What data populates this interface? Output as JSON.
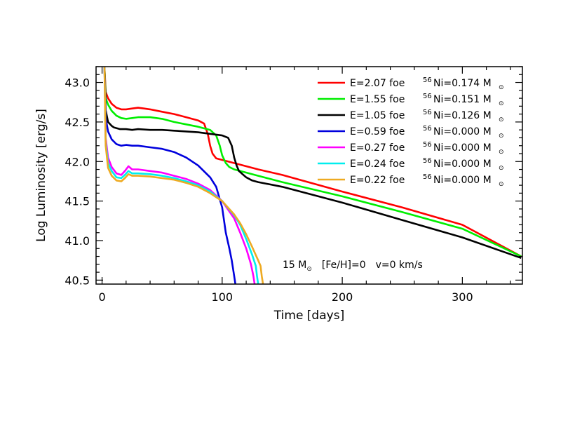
{
  "chart_data": {
    "type": "line",
    "xlabel": "Time [days]",
    "ylabel": "Log Luminosity [erg/s]",
    "xlim": [
      -5,
      350
    ],
    "ylim": [
      40.45,
      43.2
    ],
    "x_ticks": [
      0,
      100,
      200,
      300
    ],
    "y_ticks": [
      40.5,
      41.0,
      41.5,
      42.0,
      42.5,
      43.0
    ],
    "x_tick_labels": [
      "0",
      "100",
      "200",
      "300"
    ],
    "y_tick_labels": [
      "40.5",
      "41.0",
      "41.5",
      "42.0",
      "42.5",
      "43.0"
    ],
    "grid": false,
    "legend_position": "top-right",
    "annotation": {
      "mass": "15 M",
      "sun_symbol": "⊙",
      "metallicity": "[Fe/H]=0",
      "velocity": "v=0 km/s"
    },
    "series": [
      {
        "name": "E=2.07 foe",
        "ni_label": "Ni=0.174 M",
        "ni_sup": "56",
        "sun_symbol": "⊙",
        "color": "#ff0000",
        "x": [
          2,
          3,
          5,
          8,
          12,
          16,
          20,
          25,
          30,
          35,
          40,
          50,
          60,
          70,
          80,
          85,
          88,
          90,
          92,
          95,
          100,
          110,
          130,
          150,
          200,
          250,
          300,
          349
        ],
        "y": [
          43.2,
          42.88,
          42.8,
          42.73,
          42.68,
          42.66,
          42.66,
          42.67,
          42.68,
          42.67,
          42.66,
          42.63,
          42.6,
          42.56,
          42.52,
          42.48,
          42.35,
          42.2,
          42.1,
          42.04,
          42.02,
          41.98,
          41.9,
          41.83,
          41.62,
          41.42,
          41.2,
          40.8
        ]
      },
      {
        "name": "E=1.55 foe",
        "ni_label": "Ni=0.151 M",
        "ni_sup": "56",
        "sun_symbol": "⊙",
        "color": "#00ee00",
        "x": [
          2,
          3,
          5,
          8,
          12,
          16,
          20,
          25,
          30,
          40,
          50,
          60,
          70,
          80,
          90,
          95,
          98,
          100,
          103,
          106,
          110,
          130,
          150,
          200,
          250,
          300,
          349
        ],
        "y": [
          43.2,
          42.8,
          42.72,
          42.64,
          42.58,
          42.55,
          42.54,
          42.55,
          42.56,
          42.56,
          42.54,
          42.5,
          42.47,
          42.44,
          42.4,
          42.33,
          42.2,
          42.08,
          41.98,
          41.93,
          41.9,
          41.82,
          41.74,
          41.56,
          41.36,
          41.15,
          40.8
        ]
      },
      {
        "name": "E=1.05 foe",
        "ni_label": "Ni=0.126 M",
        "ni_sup": "56",
        "sun_symbol": "⊙",
        "color": "#000000",
        "x": [
          2,
          3,
          5,
          8,
          10,
          15,
          20,
          25,
          30,
          40,
          50,
          60,
          70,
          80,
          90,
          100,
          105,
          108,
          110,
          112,
          114,
          117,
          120,
          125,
          130,
          150,
          200,
          250,
          300,
          349
        ],
        "y": [
          43.2,
          42.65,
          42.5,
          42.45,
          42.43,
          42.41,
          42.41,
          42.4,
          42.41,
          42.4,
          42.4,
          42.39,
          42.38,
          42.37,
          42.35,
          42.33,
          42.3,
          42.2,
          42.05,
          41.95,
          41.88,
          41.84,
          41.8,
          41.76,
          41.74,
          41.68,
          41.48,
          41.26,
          41.04,
          40.78
        ]
      },
      {
        "name": "E=0.59 foe",
        "ni_label": "Ni=0.000 M",
        "ni_sup": "56",
        "sun_symbol": "⊙",
        "color": "#0000dd",
        "x": [
          2,
          3,
          5,
          8,
          12,
          16,
          20,
          25,
          30,
          40,
          50,
          60,
          70,
          80,
          90,
          95,
          100,
          103,
          106,
          108,
          110,
          111
        ],
        "y": [
          43.2,
          42.55,
          42.38,
          42.28,
          42.22,
          42.2,
          42.21,
          42.2,
          42.2,
          42.18,
          42.16,
          42.12,
          42.05,
          41.95,
          41.8,
          41.68,
          41.42,
          41.1,
          40.9,
          40.75,
          40.55,
          40.45
        ]
      },
      {
        "name": "E=0.27 foe",
        "ni_label": "Ni=0.000 M",
        "ni_sup": "56",
        "sun_symbol": "⊙",
        "color": "#ff00ff",
        "x": [
          2,
          3,
          5,
          8,
          12,
          16,
          19,
          22,
          25,
          30,
          40,
          50,
          60,
          70,
          80,
          90,
          100,
          110,
          115,
          120,
          124,
          126,
          127
        ],
        "y": [
          43.2,
          42.3,
          42.05,
          41.93,
          41.85,
          41.83,
          41.88,
          41.94,
          41.9,
          41.9,
          41.88,
          41.86,
          41.82,
          41.78,
          41.72,
          41.64,
          41.5,
          41.28,
          41.1,
          40.9,
          40.7,
          40.55,
          40.45
        ]
      },
      {
        "name": "E=0.24 foe",
        "ni_label": "Ni=0.000 M",
        "ni_sup": "56",
        "sun_symbol": "⊙",
        "color": "#00eeee",
        "x": [
          2,
          3,
          5,
          8,
          12,
          16,
          19,
          22,
          25,
          30,
          40,
          50,
          60,
          70,
          80,
          90,
          100,
          110,
          115,
          120,
          125,
          128,
          129,
          130
        ],
        "y": [
          43.2,
          42.25,
          41.98,
          41.88,
          41.8,
          41.79,
          41.83,
          41.88,
          41.85,
          41.85,
          41.84,
          41.82,
          41.79,
          41.75,
          41.7,
          41.62,
          41.5,
          41.32,
          41.2,
          41.02,
          40.82,
          40.68,
          40.55,
          40.45
        ]
      },
      {
        "name": "E=0.22 foe",
        "ni_label": "Ni=0.000 M",
        "ni_sup": "56",
        "sun_symbol": "⊙",
        "color": "#eeaa22",
        "x": [
          2,
          3,
          5,
          8,
          12,
          16,
          19,
          22,
          25,
          30,
          40,
          50,
          60,
          70,
          80,
          90,
          100,
          110,
          115,
          120,
          125,
          130,
          132,
          133,
          134
        ],
        "y": [
          43.2,
          42.2,
          41.92,
          41.82,
          41.76,
          41.75,
          41.79,
          41.84,
          41.82,
          41.82,
          41.81,
          41.79,
          41.77,
          41.73,
          41.68,
          41.6,
          41.5,
          41.33,
          41.22,
          41.08,
          40.92,
          40.75,
          40.68,
          40.55,
          40.45
        ]
      }
    ]
  }
}
